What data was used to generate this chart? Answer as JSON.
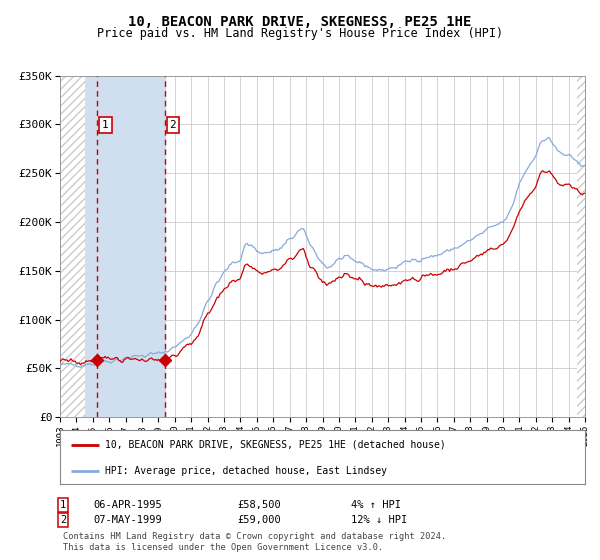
{
  "title": "10, BEACON PARK DRIVE, SKEGNESS, PE25 1HE",
  "subtitle": "Price paid vs. HM Land Registry's House Price Index (HPI)",
  "legend_line1": "10, BEACON PARK DRIVE, SKEGNESS, PE25 1HE (detached house)",
  "legend_line2": "HPI: Average price, detached house, East Lindsey",
  "transaction1_date": "06-APR-1995",
  "transaction1_price": 58500,
  "transaction1_price_str": "£58,500",
  "transaction1_hpi": "4% ↑ HPI",
  "transaction2_date": "07-MAY-1999",
  "transaction2_price": 59000,
  "transaction2_price_str": "£59,000",
  "transaction2_hpi": "12% ↓ HPI",
  "footer": "Contains HM Land Registry data © Crown copyright and database right 2024.\nThis data is licensed under the Open Government Licence v3.0.",
  "ylim": [
    0,
    350000
  ],
  "start_year": 1993,
  "end_year": 2025,
  "red_color": "#cc0000",
  "blue_color": "#88aadd",
  "transaction1_x": 1995.27,
  "transaction2_x": 1999.37,
  "background_color": "#ffffff",
  "grid_color": "#cccccc",
  "shade_color": "#dde8f5",
  "hatch_color": "#cccccc"
}
